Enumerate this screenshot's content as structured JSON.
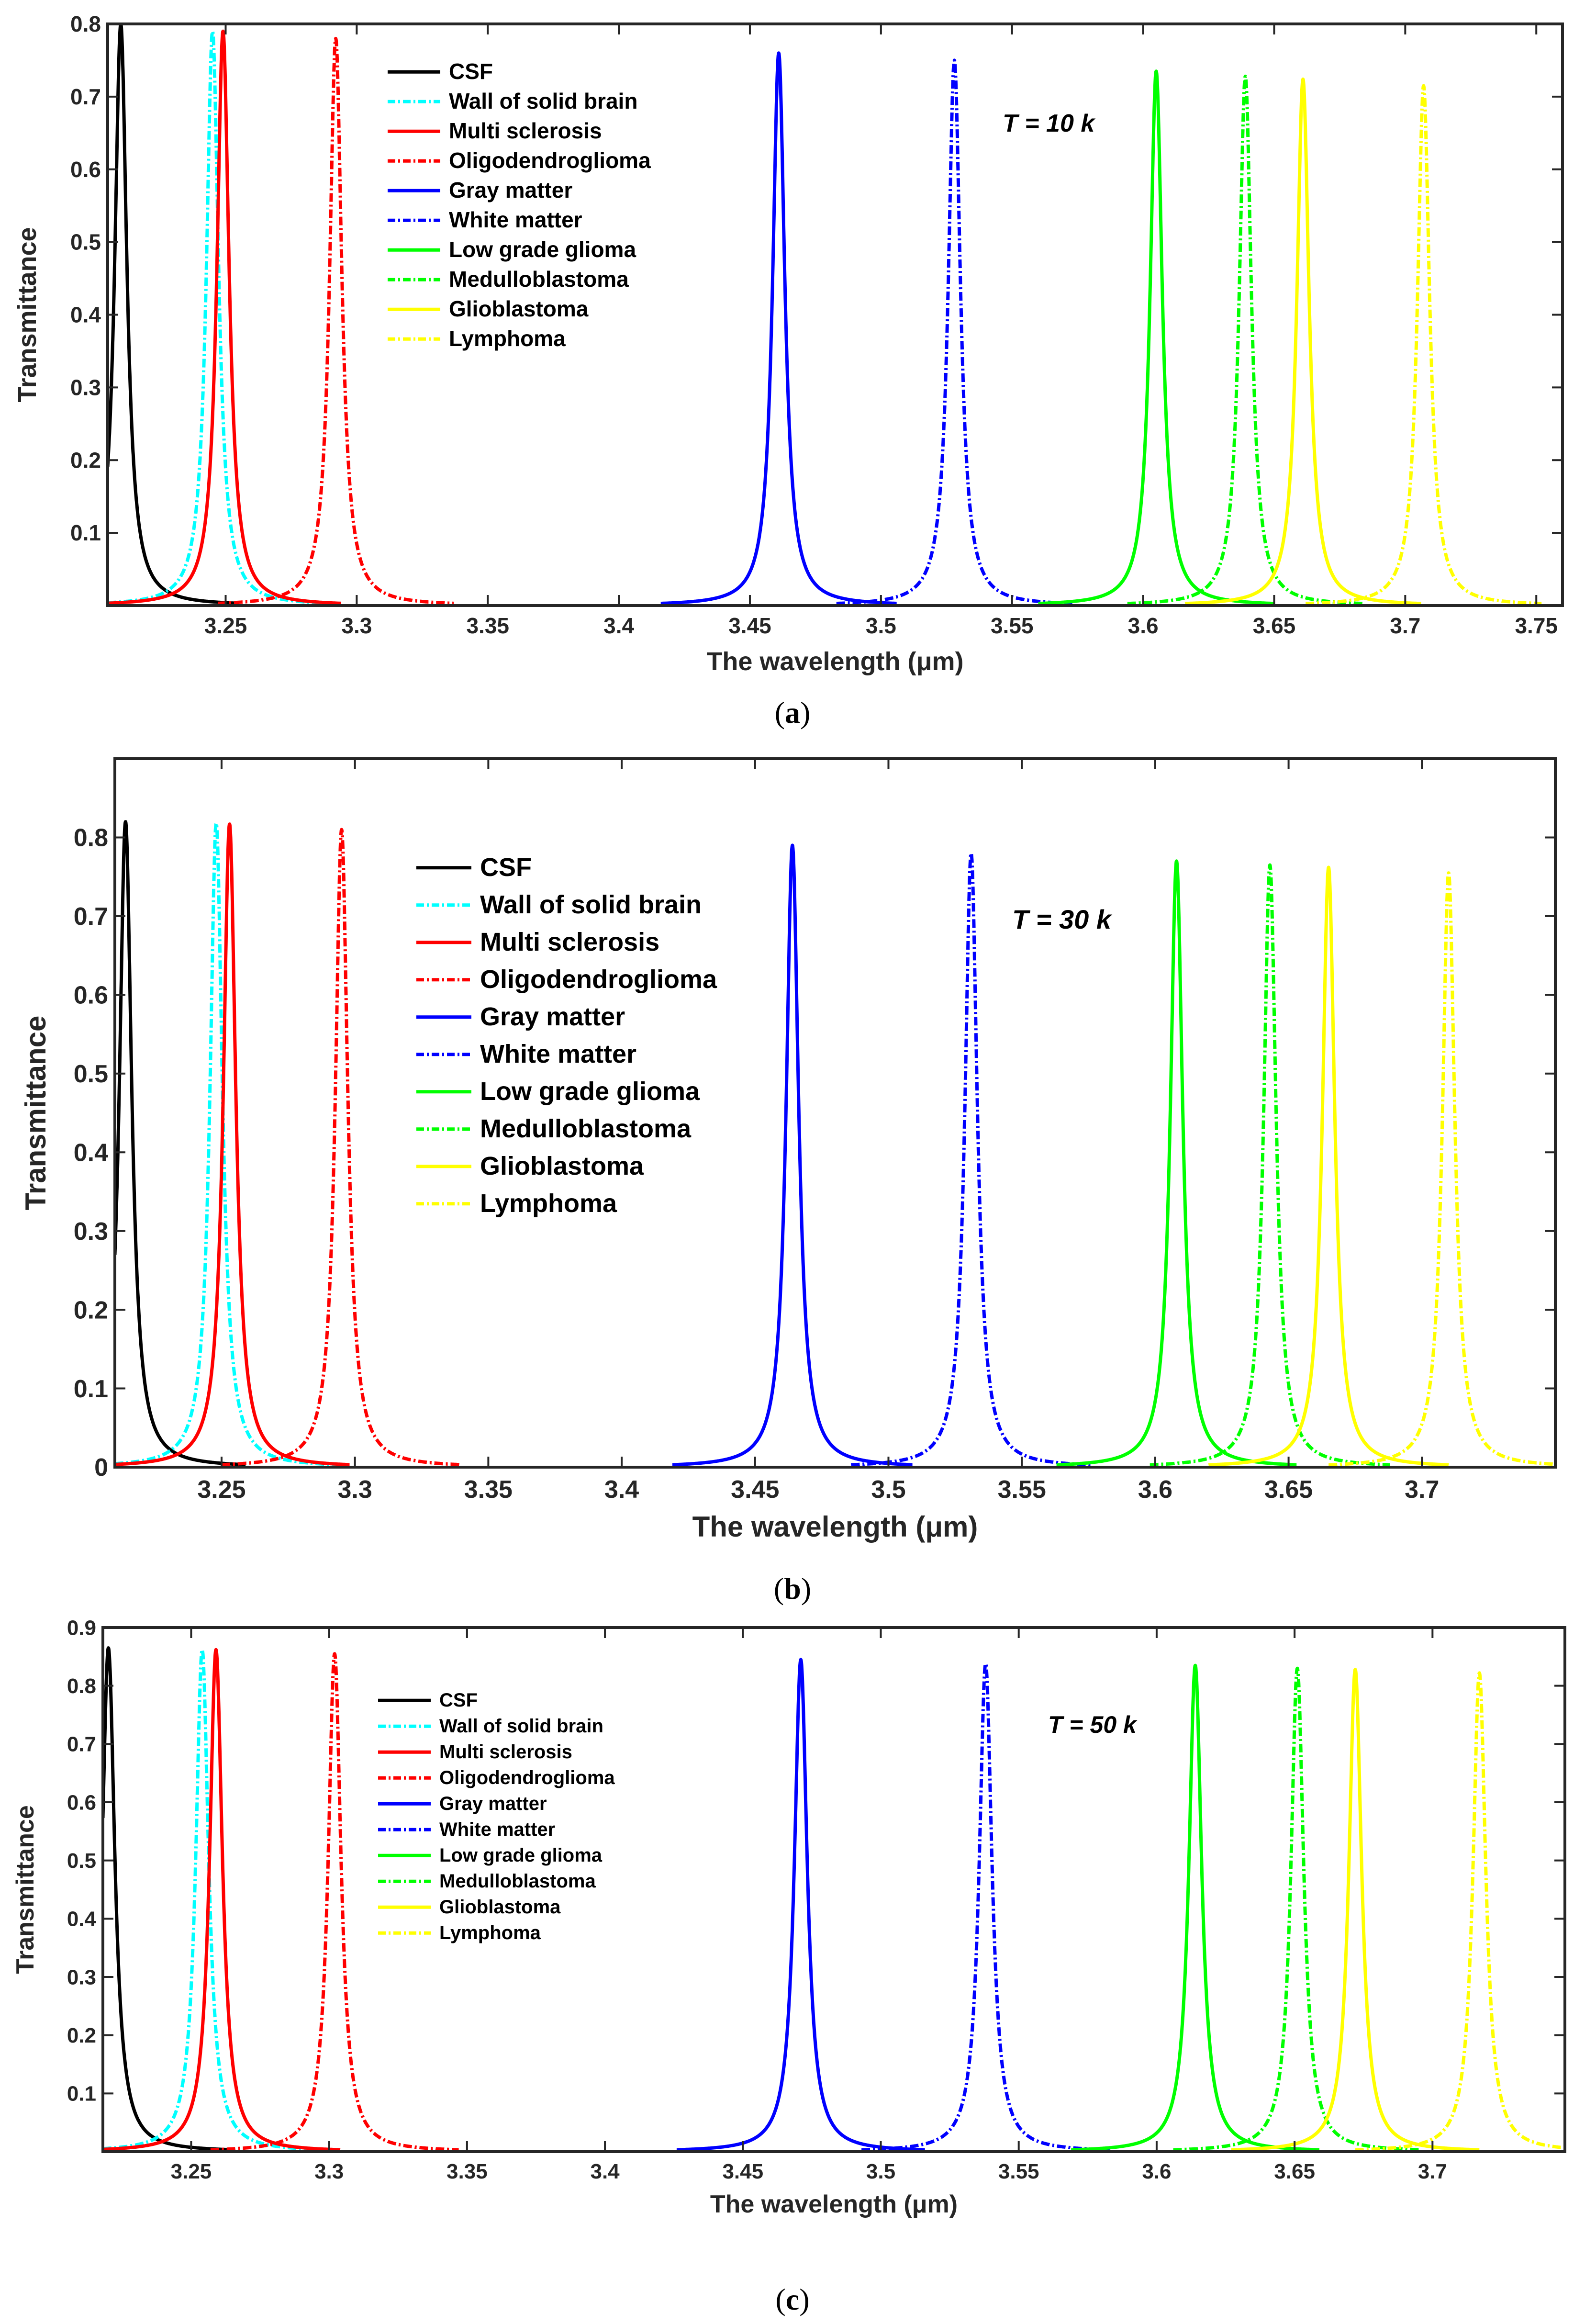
{
  "chart_data": [
    {
      "type": "line",
      "panel_label": "a",
      "annotation": "T = 10 k",
      "xlabel": "The wavelength (μm)",
      "ylabel": "Transmittance",
      "xlim": [
        3.205,
        3.76
      ],
      "ylim": [
        0,
        0.8
      ],
      "xticks": [
        "3.25",
        "3.3",
        "3.35",
        "3.4",
        "3.45",
        "3.5",
        "3.55",
        "3.6",
        "3.65",
        "3.7",
        "3.75"
      ],
      "yticks": [
        "0.1",
        "0.2",
        "0.3",
        "0.4",
        "0.5",
        "0.6",
        "0.7",
        "0.8"
      ],
      "series": [
        {
          "name": "CSF",
          "center": 3.21,
          "peak": 0.8
        },
        {
          "name": "Wall of solid brain",
          "center": 3.245,
          "peak": 0.79
        },
        {
          "name": "Multi sclerosis",
          "center": 3.249,
          "peak": 0.79
        },
        {
          "name": "Oligodendroglioma",
          "center": 3.292,
          "peak": 0.78
        },
        {
          "name": "Gray matter",
          "center": 3.461,
          "peak": 0.76
        },
        {
          "name": "White matter",
          "center": 3.528,
          "peak": 0.75
        },
        {
          "name": "Low grade glioma",
          "center": 3.605,
          "peak": 0.735
        },
        {
          "name": "Medulloblastoma",
          "center": 3.639,
          "peak": 0.728
        },
        {
          "name": "Glioblastoma",
          "center": 3.661,
          "peak": 0.724
        },
        {
          "name": "Lymphoma",
          "center": 3.707,
          "peak": 0.715
        }
      ]
    },
    {
      "type": "line",
      "panel_label": "b",
      "annotation": "T = 30 k",
      "xlabel": "The wavelength (μm)",
      "ylabel": "Transmittance",
      "xlim": [
        3.21,
        3.75
      ],
      "ylim": [
        0,
        0.9
      ],
      "xticks": [
        "3.25",
        "3.3",
        "3.35",
        "3.4",
        "3.45",
        "3.5",
        "3.55",
        "3.6",
        "3.65",
        "3.7"
      ],
      "yticks": [
        "0",
        "0.1",
        "0.2",
        "0.3",
        "0.4",
        "0.5",
        "0.6",
        "0.7",
        "0.8"
      ],
      "series": [
        {
          "name": "CSF",
          "center": 3.214,
          "peak": 0.82
        },
        {
          "name": "Wall of solid brain",
          "center": 3.248,
          "peak": 0.818
        },
        {
          "name": "Multi sclerosis",
          "center": 3.253,
          "peak": 0.817
        },
        {
          "name": "Oligodendroglioma",
          "center": 3.295,
          "peak": 0.81
        },
        {
          "name": "Gray matter",
          "center": 3.464,
          "peak": 0.79
        },
        {
          "name": "White matter",
          "center": 3.531,
          "peak": 0.78
        },
        {
          "name": "Low grade glioma",
          "center": 3.608,
          "peak": 0.77
        },
        {
          "name": "Medulloblastoma",
          "center": 3.643,
          "peak": 0.765
        },
        {
          "name": "Glioblastoma",
          "center": 3.665,
          "peak": 0.762
        },
        {
          "name": "Lymphoma",
          "center": 3.71,
          "peak": 0.755
        }
      ]
    },
    {
      "type": "line",
      "panel_label": "c",
      "annotation": "T = 50 k",
      "xlabel": "The wavelength (μm)",
      "ylabel": "Transmittance",
      "xlim": [
        3.218,
        3.748
      ],
      "ylim": [
        0,
        0.9
      ],
      "xticks": [
        "3.25",
        "3.3",
        "3.35",
        "3.4",
        "3.45",
        "3.5",
        "3.55",
        "3.6",
        "3.65",
        "3.7"
      ],
      "yticks": [
        "0.1",
        "0.2",
        "0.3",
        "0.4",
        "0.5",
        "0.6",
        "0.7",
        "0.8",
        "0.9"
      ],
      "series": [
        {
          "name": "CSF",
          "center": 3.22,
          "peak": 0.865
        },
        {
          "name": "Wall of solid brain",
          "center": 3.254,
          "peak": 0.862
        },
        {
          "name": "Multi sclerosis",
          "center": 3.259,
          "peak": 0.862
        },
        {
          "name": "Oligodendroglioma",
          "center": 3.302,
          "peak": 0.855
        },
        {
          "name": "Gray matter",
          "center": 3.471,
          "peak": 0.845
        },
        {
          "name": "White matter",
          "center": 3.538,
          "peak": 0.838
        },
        {
          "name": "Low grade glioma",
          "center": 3.614,
          "peak": 0.835
        },
        {
          "name": "Medulloblastoma",
          "center": 3.651,
          "peak": 0.83
        },
        {
          "name": "Glioblastoma",
          "center": 3.672,
          "peak": 0.828
        },
        {
          "name": "Lymphoma",
          "center": 3.717,
          "peak": 0.822
        }
      ]
    }
  ],
  "series_styles": [
    {
      "color": "#000000",
      "dashed": false
    },
    {
      "color": "#00ffff",
      "dashed": true
    },
    {
      "color": "#ff0000",
      "dashed": false
    },
    {
      "color": "#ff0000",
      "dashed": true
    },
    {
      "color": "#0000ff",
      "dashed": false
    },
    {
      "color": "#0000ff",
      "dashed": true
    },
    {
      "color": "#00ff00",
      "dashed": false
    },
    {
      "color": "#00ff00",
      "dashed": true
    },
    {
      "color": "#ffff00",
      "dashed": false
    },
    {
      "color": "#ffff00",
      "dashed": true
    }
  ]
}
